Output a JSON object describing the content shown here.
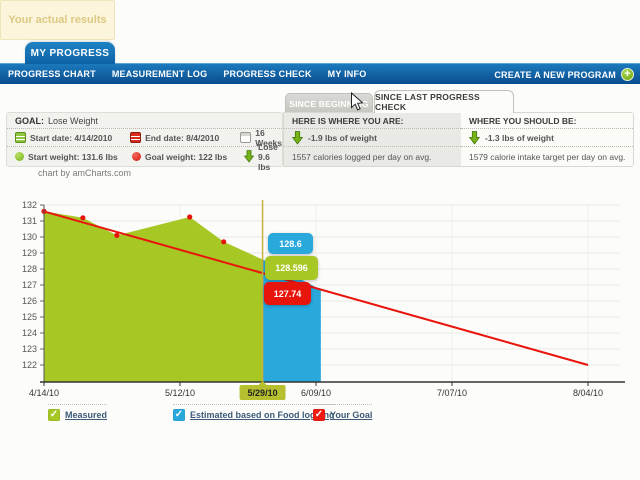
{
  "header": {
    "tab": "MY PROGRESS",
    "nav_items": [
      "PROGRESS CHART",
      "MEASUREMENT LOG",
      "PROGRESS CHECK",
      "MY INFO"
    ],
    "create_program": "CREATE A NEW PROGRAM"
  },
  "tabs": {
    "inactive": "SINCE BEGINNING",
    "active": "SINCE LAST PROGRESS CHECK"
  },
  "goal_panel": {
    "label": "GOAL:",
    "value": "Lose Weight",
    "start_date": "Start date: 4/14/2010",
    "end_date": "End date: 8/4/2010",
    "duration": "16 Weeks",
    "start_weight": "Start weight: 131.6 lbs",
    "goal_weight": "Goal weight: 122 lbs",
    "lose": "Lose 9.6 lbs"
  },
  "status_panel": {
    "left": {
      "header": "HERE IS WHERE YOU ARE:",
      "weight": "-1.9 lbs of weight",
      "calories": "1557 calories logged per day on avg."
    },
    "right": {
      "header": "WHERE YOU SHOULD BE:",
      "weight": "-1.3 lbs of weight",
      "calories": "1579 calorie intake target per day on avg."
    }
  },
  "chart_credit": "chart by amCharts.com",
  "chart_data": {
    "type": "area",
    "ylim": [
      122,
      132
    ],
    "y_ticks": [
      122,
      123,
      124,
      125,
      126,
      127,
      128,
      129,
      130,
      131,
      132
    ],
    "x_ticks": [
      {
        "label": "4/14/10",
        "day": 0
      },
      {
        "label": "5/12/10",
        "day": 28
      },
      {
        "label": "5/29/10",
        "day": 45,
        "highlight": true
      },
      {
        "label": "6/09/10",
        "day": 56
      },
      {
        "label": "7/07/10",
        "day": 84
      },
      {
        "label": "8/04/10",
        "day": 112
      }
    ],
    "series": [
      {
        "name": "Measured",
        "type": "area",
        "color": "#a7c724",
        "bullet_color": "#e8150c",
        "points": [
          {
            "day": 0,
            "value": 131.6
          },
          {
            "day": 8,
            "value": 131.2
          },
          {
            "day": 15,
            "value": 130.1
          },
          {
            "day": 30,
            "value": 131.25
          },
          {
            "day": 37,
            "value": 129.7
          },
          {
            "day": 45,
            "value": 128.596
          }
        ]
      },
      {
        "name": "Estimated based on Food logging",
        "type": "area",
        "color": "#29a8dc",
        "points": [
          {
            "day": 45,
            "value": 128.6
          },
          {
            "day": 57,
            "value": 126.7
          }
        ]
      },
      {
        "name": "Your Goal",
        "type": "line",
        "color": "#e8150c",
        "points": [
          {
            "day": 0,
            "value": 131.6
          },
          {
            "day": 112,
            "value": 122
          }
        ]
      }
    ],
    "cursor": {
      "day": 45,
      "label": "5/29/10",
      "line_color": "#c7b13b",
      "balloon_color": "#b6c02f"
    },
    "balloons": [
      {
        "value": "128.6",
        "color": "#29a8dc"
      },
      {
        "value": "128.596",
        "color": "#a7c724"
      },
      {
        "value": "127.74",
        "color": "#e8150c"
      }
    ],
    "tooltip": "Your actual results"
  },
  "legend": [
    {
      "label": "Measured",
      "color": "#a7c724"
    },
    {
      "label": "Estimated based on Food logging",
      "color": "#29a8dc"
    },
    {
      "label": "Your Goal",
      "color": "#ed1b10"
    }
  ]
}
